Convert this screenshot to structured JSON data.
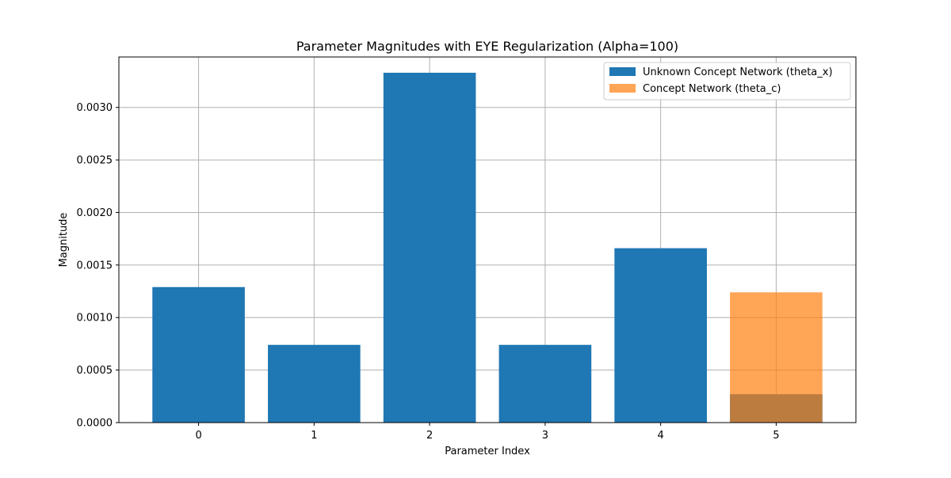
{
  "chart_data": {
    "type": "bar",
    "title": "Parameter Magnitudes with EYE Regularization (Alpha=100)",
    "xlabel": "Parameter Index",
    "ylabel": "Magnitude",
    "categories": [
      "0",
      "1",
      "2",
      "3",
      "4",
      "5"
    ],
    "x": [
      0,
      1,
      2,
      3,
      4,
      5
    ],
    "ylim": [
      0,
      0.00348
    ],
    "yticks": [
      "0.0000",
      "0.0005",
      "0.0010",
      "0.0015",
      "0.0020",
      "0.0025",
      "0.0030"
    ],
    "ytick_values": [
      0,
      0.0005,
      0.001,
      0.0015,
      0.002,
      0.0025,
      0.003
    ],
    "grid": true,
    "legend_position": "top-right",
    "series": [
      {
        "name": "Unknown Concept Network (theta_x)",
        "color": "#1f77b4",
        "opacity": 1.0,
        "x": [
          0,
          1,
          2,
          3,
          4,
          5
        ],
        "values": [
          0.00129,
          0.00074,
          0.00333,
          0.00074,
          0.00166,
          0.00027
        ]
      },
      {
        "name": "Concept Network (theta_c)",
        "color": "#ff7f0e",
        "opacity": 0.7,
        "x": [
          5
        ],
        "values": [
          0.00124
        ]
      }
    ]
  }
}
